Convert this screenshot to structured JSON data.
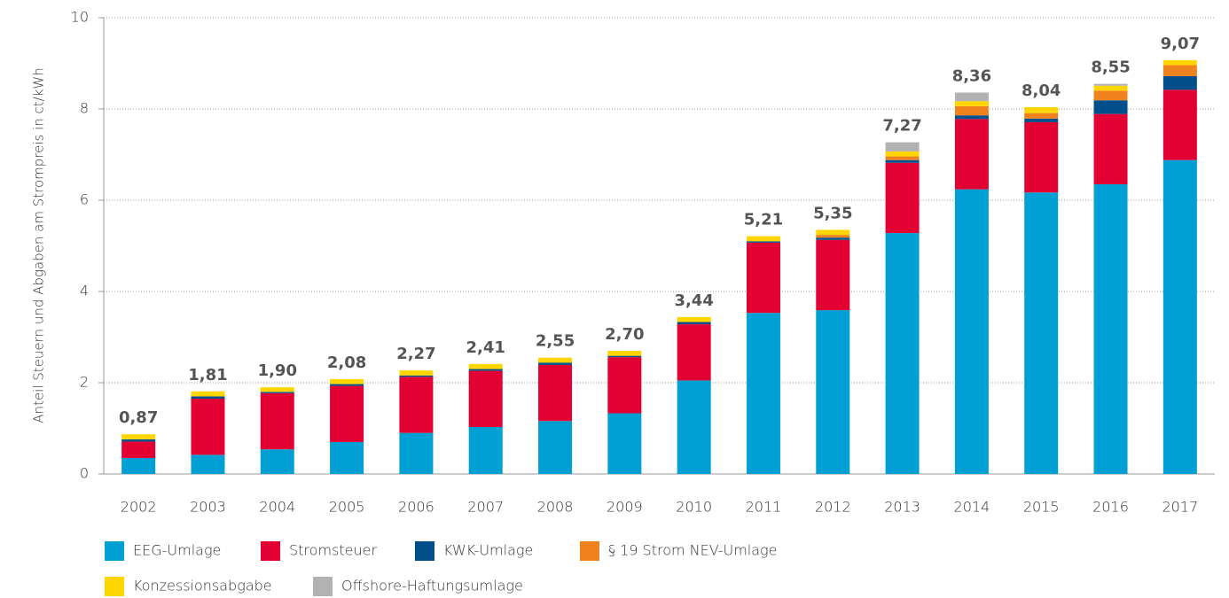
{
  "chart_data": {
    "type": "stacked_bar",
    "y_label": "Anteil Steuern und Abgaben am Strompreis in ct/kWh",
    "categories": [
      "2002",
      "2003",
      "2004",
      "2005",
      "2006",
      "2007",
      "2008",
      "2009",
      "2010",
      "2011",
      "2012",
      "2013",
      "2014",
      "2015",
      "2016",
      "2017"
    ],
    "series": [
      {
        "name": "EEG-Umlage",
        "color": "#009fd4",
        "values": [
          0.35,
          0.42,
          0.54,
          0.7,
          0.9,
          1.03,
          1.16,
          1.33,
          2.05,
          3.53,
          3.59,
          5.28,
          6.24,
          6.17,
          6.35,
          6.88
        ]
      },
      {
        "name": "Stromsteuer",
        "color": "#e30032",
        "values": [
          0.36,
          1.23,
          1.23,
          1.23,
          1.23,
          1.23,
          1.23,
          1.23,
          1.23,
          1.54,
          1.54,
          1.54,
          1.54,
          1.54,
          1.54,
          1.54
        ]
      },
      {
        "name": "KWK-Umlage",
        "color": "#004f8b",
        "values": [
          0.05,
          0.05,
          0.03,
          0.04,
          0.03,
          0.04,
          0.05,
          0.03,
          0.05,
          0.03,
          0.05,
          0.06,
          0.08,
          0.08,
          0.3,
          0.3
        ]
      },
      {
        "name": "§ 19 Strom NEV-Umlage",
        "color": "#f0821e",
        "values": [
          0,
          0,
          0,
          0,
          0,
          0,
          0,
          0,
          0,
          0,
          0.06,
          0.08,
          0.2,
          0.12,
          0.21,
          0.24
        ]
      },
      {
        "name": "Konzessionsabgabe",
        "color": "#ffd500",
        "values": [
          0.11,
          0.11,
          0.1,
          0.11,
          0.11,
          0.11,
          0.11,
          0.11,
          0.11,
          0.11,
          0.11,
          0.11,
          0.11,
          0.13,
          0.11,
          0.11
        ]
      },
      {
        "name": "Offshore-Haftungsumlage",
        "color": "#b2b2b2",
        "values": [
          0,
          0,
          0,
          0,
          0,
          0,
          0,
          0,
          0,
          0,
          0,
          0.2,
          0.19,
          0,
          0.04,
          0
        ]
      }
    ],
    "totals": [
      0.87,
      1.81,
      1.9,
      2.08,
      2.27,
      2.41,
      2.55,
      2.7,
      3.44,
      5.21,
      5.35,
      7.27,
      8.36,
      8.04,
      8.55,
      9.07
    ],
    "total_labels": [
      "0,87",
      "1,81",
      "1,90",
      "2,08",
      "2,27",
      "2,41",
      "2,55",
      "2,70",
      "3,44",
      "5,21",
      "5,35",
      "7,27",
      "8,36",
      "8,04",
      "8,55",
      "9,07"
    ],
    "ylim": [
      0,
      10
    ],
    "yticks": [
      0,
      2,
      4,
      6,
      8,
      10
    ],
    "grid": true
  }
}
